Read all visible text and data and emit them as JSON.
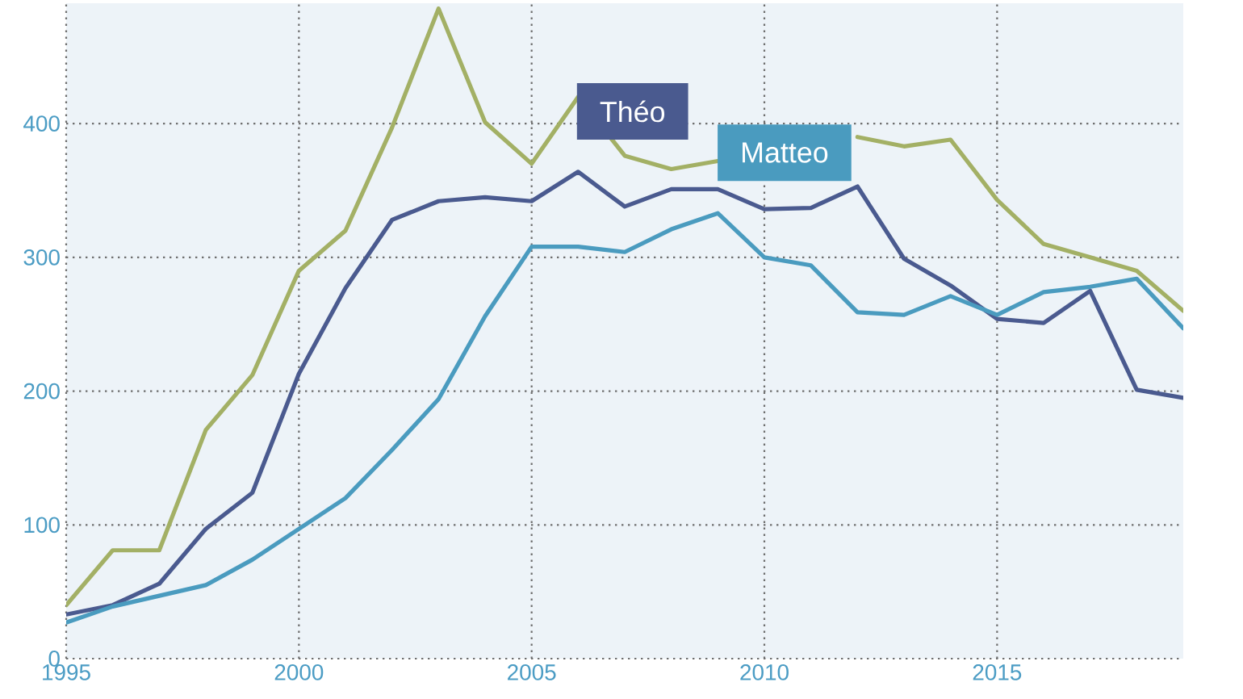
{
  "chart_data": {
    "type": "line",
    "x": [
      1995,
      1996,
      1997,
      1998,
      1999,
      2000,
      2001,
      2002,
      2003,
      2004,
      2005,
      2006,
      2007,
      2008,
      2009,
      2010,
      2011,
      2012,
      2013,
      2014,
      2015,
      2016,
      2017,
      2018,
      2019
    ],
    "xlim": [
      1995,
      2019
    ],
    "xticks": [
      1995,
      2000,
      2005,
      2010,
      2015
    ],
    "ylim": [
      0,
      490
    ],
    "yticks": [
      0,
      100,
      200,
      300,
      400
    ],
    "grid": true,
    "series": [
      {
        "color": "#a3b065",
        "values": [
          40,
          81,
          81,
          171,
          212,
          290,
          320,
          397,
          486,
          401,
          370,
          420,
          376,
          366,
          372,
          null,
          null,
          390,
          383,
          388,
          343,
          310,
          300,
          290,
          260
        ]
      },
      {
        "name": "Théo",
        "color": "#4a5a8f",
        "values": [
          33,
          40,
          56,
          97,
          124,
          213,
          277,
          328,
          342,
          345,
          342,
          364,
          338,
          351,
          351,
          336,
          337,
          353,
          299,
          279,
          254,
          251,
          275,
          201,
          195
        ]
      },
      {
        "name": "Matteo",
        "color": "#4a9bbf",
        "values": [
          27,
          39,
          47,
          55,
          74,
          97,
          120,
          156,
          194,
          256,
          308,
          308,
          304,
          321,
          333,
          300,
          294,
          259,
          257,
          271,
          257,
          274,
          278,
          284,
          247
        ]
      }
    ]
  }
}
